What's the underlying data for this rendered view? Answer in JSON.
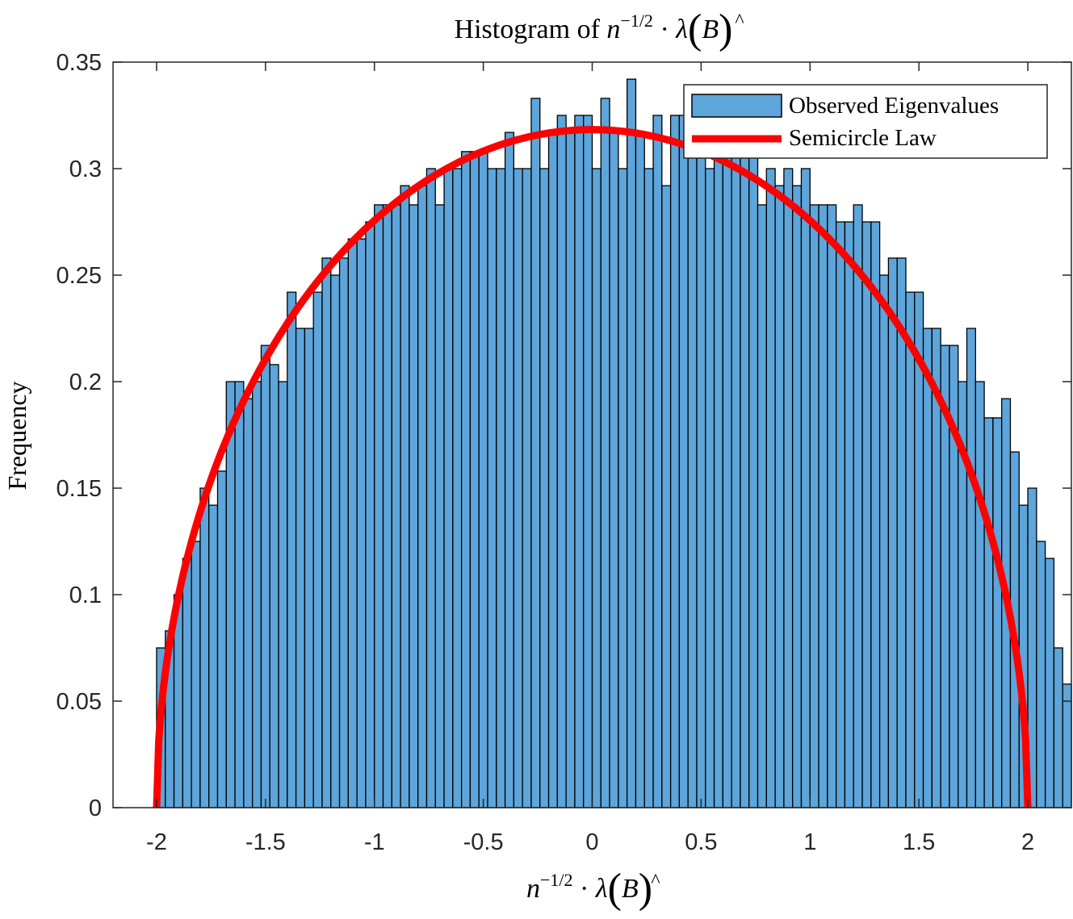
{
  "chart_data": {
    "type": "bar",
    "title": {
      "prefix": "Histogram of ",
      "n": "n",
      "exponent": "−1/2",
      "dot": " · ",
      "lambda": "λ",
      "open_paren": "(",
      "B": "B",
      "hat": "^",
      "close_paren": ")"
    },
    "xlabel": {
      "n": "n",
      "exponent": "−1/2",
      "dot": " · ",
      "lambda": "λ",
      "open_paren": "(",
      "B": "B",
      "hat": "^",
      "close_paren": ")"
    },
    "ylabel": "Frequency",
    "xlim": [
      -2.2,
      2.2
    ],
    "ylim": [
      0,
      0.35
    ],
    "xticks": [
      -2,
      -1.5,
      -1,
      -0.5,
      0,
      0.5,
      1,
      1.5,
      2
    ],
    "xtick_labels": [
      "-2",
      "-1.5",
      "-1",
      "-0.5",
      "0",
      "0.5",
      "1",
      "1.5",
      "2"
    ],
    "yticks": [
      0,
      0.05,
      0.1,
      0.15,
      0.2,
      0.25,
      0.3,
      0.35
    ],
    "ytick_labels": [
      "0",
      "0.05",
      "0.1",
      "0.15",
      "0.2",
      "0.25",
      "0.3",
      "0.35"
    ],
    "grid": false,
    "legend_position": "top-right",
    "bin_start": -1.98,
    "bin_width": 0.04,
    "series": [
      {
        "name": "Observed Eigenvalues",
        "kind": "histogram",
        "color": "#5DA5DA",
        "values": [
          0.075,
          0.083,
          0.1,
          0.117,
          0.125,
          0.15,
          0.142,
          0.158,
          0.2,
          0.2,
          0.192,
          0.2,
          0.217,
          0.208,
          0.2,
          0.242,
          0.225,
          0.225,
          0.242,
          0.258,
          0.25,
          0.258,
          0.267,
          0.267,
          0.275,
          0.283,
          0.283,
          0.283,
          0.292,
          0.283,
          0.292,
          0.3,
          0.283,
          0.3,
          0.3,
          0.308,
          0.308,
          0.308,
          0.3,
          0.3,
          0.317,
          0.3,
          0.3,
          0.333,
          0.3,
          0.317,
          0.325,
          0.317,
          0.325,
          0.325,
          0.3,
          0.333,
          0.317,
          0.3,
          0.342,
          0.317,
          0.3,
          0.325,
          0.292,
          0.325,
          0.325,
          0.317,
          0.325,
          0.3,
          0.317,
          0.317,
          0.308,
          0.317,
          0.308,
          0.283,
          0.3,
          0.292,
          0.3,
          0.292,
          0.3,
          0.283,
          0.283,
          0.283,
          0.275,
          0.275,
          0.283,
          0.275,
          0.275,
          0.25,
          0.258,
          0.258,
          0.242,
          0.242,
          0.225,
          0.225,
          0.217,
          0.217,
          0.2,
          0.225,
          0.2,
          0.183,
          0.183,
          0.192,
          0.167,
          0.142,
          0.15,
          0.125,
          0.117,
          0.075,
          0.058
        ]
      },
      {
        "name": "Semicircle Law",
        "kind": "line",
        "color": "#FF0000",
        "function": "sqrt(4 - x^2) / (2*pi)",
        "domain": [
          -2,
          2
        ]
      }
    ]
  }
}
